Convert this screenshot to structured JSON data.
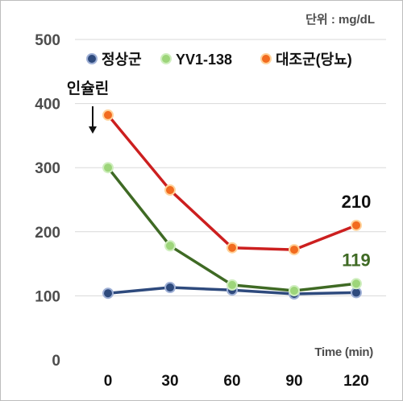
{
  "chart_data": {
    "type": "line",
    "unit_label": "단위 : mg/dL",
    "xlabel": "Time (min)",
    "ylabel": "",
    "x": [
      0,
      30,
      60,
      90,
      120
    ],
    "x_tick_labels": [
      "0",
      "30",
      "60",
      "90",
      "120"
    ],
    "ylim": [
      0,
      500
    ],
    "y_ticks": [
      0,
      100,
      200,
      300,
      400,
      500
    ],
    "y_tick_labels": [
      "0",
      "100",
      "200",
      "300",
      "400",
      "500"
    ],
    "grid": true,
    "legend_position": "top",
    "series": [
      {
        "name": "정상군",
        "values": [
          104,
          113,
          109,
          103,
          105
        ],
        "color": "#2e4a7d",
        "marker_fill": "#2e4a7d",
        "marker_edge": "#9fb0d6"
      },
      {
        "name": "YV1-138",
        "values": [
          300,
          178,
          117,
          108,
          119
        ],
        "color": "#3f6a24",
        "marker_fill": "#9dd57a",
        "marker_edge": "#cfeebe"
      },
      {
        "name": "대조군(당뇨)",
        "values": [
          382,
          265,
          175,
          172,
          210
        ],
        "color": "#cc1f1f",
        "marker_fill": "#f26b1f",
        "marker_edge": "#ffd29a"
      }
    ],
    "annotations": [
      {
        "text": "인슐린",
        "at_x": 0,
        "kind": "arrow-label"
      },
      {
        "text": "210",
        "series": "대조군(당뇨)",
        "at_x": 120,
        "color": "#111111"
      },
      {
        "text": "119",
        "series": "YV1-138",
        "at_x": 120,
        "color": "#3f6a24"
      }
    ],
    "colors": {
      "axis_text": "#4d4d4d",
      "grid": "#d9d9d9"
    }
  }
}
